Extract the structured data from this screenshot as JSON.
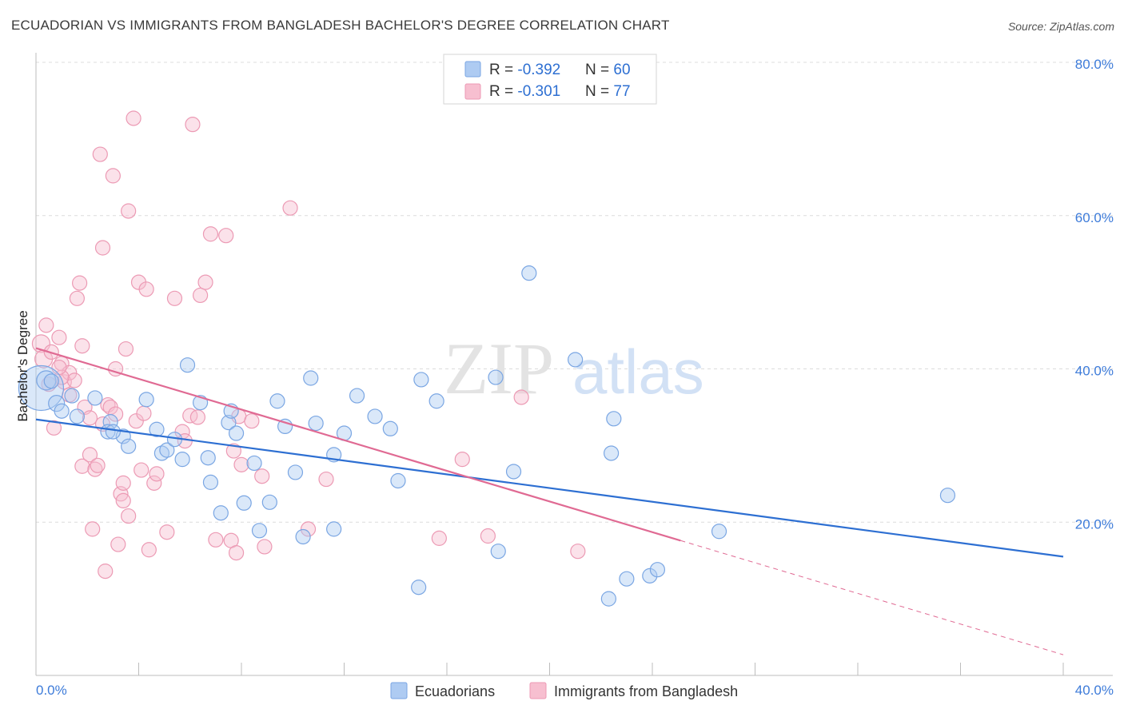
{
  "title": "ECUADORIAN VS IMMIGRANTS FROM BANGLADESH BACHELOR'S DEGREE CORRELATION CHART",
  "source": "Source: ZipAtlas.com",
  "watermark": {
    "zip": "ZIP",
    "atlas": "atlas"
  },
  "colors": {
    "blue_fill": "#aecbf2",
    "blue_stroke": "#7aa6e3",
    "blue_line": "#2d6fd2",
    "pink_fill": "#f7bfd0",
    "pink_stroke": "#ec9ab4",
    "pink_line": "#e06a93",
    "tick_text": "#3d7bd9",
    "grid": "#dcdcdc"
  },
  "legend": {
    "rows": [
      {
        "r_label": "R = ",
        "r_value": "-0.392",
        "n_label": "N = ",
        "n_value": "60",
        "series": "blue"
      },
      {
        "r_label": "R = ",
        "r_value": "-0.301",
        "n_label": "N = ",
        "n_value": "77",
        "series": "pink"
      }
    ]
  },
  "bottom_legend": [
    {
      "label": "Ecuadorians",
      "series": "blue"
    },
    {
      "label": "Immigrants from Bangladesh",
      "series": "pink"
    }
  ],
  "chart_data": {
    "type": "scatter",
    "title": "ECUADORIAN VS IMMIGRANTS FROM BANGLADESH BACHELOR'S DEGREE CORRELATION CHART",
    "xlabel": "",
    "ylabel": "Bachelor's Degree",
    "xlim": [
      0,
      40
    ],
    "ylim": [
      0,
      80
    ],
    "x_tick_labels": [
      {
        "value": 0,
        "label": "0.0%"
      },
      {
        "value": 40,
        "label": "40.0%"
      }
    ],
    "y_tick_labels": [
      {
        "value": 20,
        "label": "20.0%"
      },
      {
        "value": 40,
        "label": "40.0%"
      },
      {
        "value": 60,
        "label": "60.0%"
      },
      {
        "value": 80,
        "label": "80.0%"
      }
    ],
    "x_minor_ticks": [
      4,
      8,
      12,
      16,
      20,
      24,
      28,
      32,
      36,
      40
    ],
    "series": [
      {
        "name": "Ecuadorians",
        "color": "blue",
        "r": -0.392,
        "n": 60,
        "trend": {
          "x0": 0,
          "y0": 33.4,
          "x1": 40,
          "y1": 15.5,
          "dashed_from": null
        },
        "points": [
          [
            0.2,
            37.5,
            28
          ],
          [
            0.4,
            38.5,
            12
          ],
          [
            0.8,
            35.5,
            10
          ],
          [
            1.0,
            34.5,
            9
          ],
          [
            1.6,
            33.8,
            9
          ],
          [
            1.4,
            36.5,
            9
          ],
          [
            2.3,
            36.2,
            9
          ],
          [
            2.9,
            33.1,
            9
          ],
          [
            2.8,
            31.8,
            9
          ],
          [
            3.4,
            31.2,
            9
          ],
          [
            3.6,
            29.9,
            9
          ],
          [
            4.3,
            36.0,
            9
          ],
          [
            4.7,
            32.1,
            9
          ],
          [
            4.9,
            29.0,
            9
          ],
          [
            5.1,
            29.4,
            9
          ],
          [
            5.4,
            30.8,
            9
          ],
          [
            5.7,
            28.2,
            9
          ],
          [
            5.9,
            40.5,
            9
          ],
          [
            6.4,
            35.6,
            9
          ],
          [
            6.7,
            28.4,
            9
          ],
          [
            6.8,
            25.2,
            9
          ],
          [
            7.2,
            21.2,
            9
          ],
          [
            7.5,
            33.0,
            9
          ],
          [
            7.8,
            31.6,
            9
          ],
          [
            7.6,
            34.5,
            9
          ],
          [
            8.1,
            22.5,
            9
          ],
          [
            8.5,
            27.7,
            9
          ],
          [
            8.7,
            18.9,
            9
          ],
          [
            9.1,
            22.6,
            9
          ],
          [
            9.4,
            35.8,
            9
          ],
          [
            9.7,
            32.5,
            9
          ],
          [
            10.1,
            26.5,
            9
          ],
          [
            10.4,
            18.1,
            9
          ],
          [
            10.9,
            32.9,
            9
          ],
          [
            10.7,
            38.8,
            9
          ],
          [
            11.6,
            28.8,
            9
          ],
          [
            11.6,
            19.1,
            9
          ],
          [
            12.0,
            31.6,
            9
          ],
          [
            12.5,
            36.5,
            9
          ],
          [
            13.2,
            33.8,
            9
          ],
          [
            13.8,
            32.2,
            9
          ],
          [
            14.1,
            25.4,
            9
          ],
          [
            14.9,
            11.5,
            9
          ],
          [
            15.0,
            38.6,
            9
          ],
          [
            15.6,
            35.8,
            9
          ],
          [
            17.9,
            38.9,
            9
          ],
          [
            18.0,
            16.2,
            9
          ],
          [
            18.6,
            26.6,
            9
          ],
          [
            19.2,
            52.5,
            9
          ],
          [
            21.0,
            41.2,
            9
          ],
          [
            22.5,
            33.5,
            9
          ],
          [
            22.4,
            29.0,
            9
          ],
          [
            22.3,
            10.0,
            9
          ],
          [
            23.0,
            12.6,
            9
          ],
          [
            23.9,
            13.0,
            9
          ],
          [
            24.2,
            13.8,
            9
          ],
          [
            26.6,
            18.8,
            9
          ],
          [
            35.5,
            23.5,
            9
          ],
          [
            0.6,
            38.4,
            9
          ],
          [
            3.0,
            31.8,
            9
          ]
        ]
      },
      {
        "name": "Immigrants from Bangladesh",
        "color": "pink",
        "r": -0.301,
        "n": 77,
        "trend": {
          "x0": 0,
          "y0": 42.7,
          "x1": 40,
          "y1": 2.7,
          "dashed_from": 25.1
        },
        "points": [
          [
            0.2,
            43.3,
            11
          ],
          [
            0.3,
            41.3,
            11
          ],
          [
            0.4,
            45.7,
            9
          ],
          [
            0.5,
            38.0,
            9
          ],
          [
            0.6,
            42.2,
            9
          ],
          [
            0.7,
            32.3,
            9
          ],
          [
            0.9,
            44.1,
            9
          ],
          [
            1.0,
            40.7,
            9
          ],
          [
            1.1,
            38.3,
            9
          ],
          [
            1.3,
            39.5,
            9
          ],
          [
            1.3,
            36.6,
            9
          ],
          [
            1.5,
            38.5,
            9
          ],
          [
            1.6,
            49.2,
            9
          ],
          [
            1.7,
            51.2,
            9
          ],
          [
            1.8,
            43.0,
            9
          ],
          [
            1.8,
            27.3,
            9
          ],
          [
            1.9,
            35.0,
            9
          ],
          [
            2.1,
            28.8,
            9
          ],
          [
            2.1,
            33.6,
            9
          ],
          [
            2.2,
            19.1,
            9
          ],
          [
            2.3,
            26.9,
            9
          ],
          [
            2.4,
            27.4,
            9
          ],
          [
            2.5,
            68.0,
            9
          ],
          [
            2.6,
            32.8,
            9
          ],
          [
            2.6,
            55.8,
            9
          ],
          [
            2.7,
            13.6,
            9
          ],
          [
            2.8,
            35.3,
            9
          ],
          [
            2.9,
            35.0,
            9
          ],
          [
            3.0,
            65.2,
            9
          ],
          [
            3.1,
            40.0,
            9
          ],
          [
            3.1,
            34.1,
            9
          ],
          [
            3.2,
            17.1,
            9
          ],
          [
            3.3,
            23.7,
            9
          ],
          [
            3.4,
            25.1,
            9
          ],
          [
            3.4,
            22.8,
            9
          ],
          [
            3.5,
            42.6,
            9
          ],
          [
            3.6,
            60.6,
            9
          ],
          [
            3.6,
            20.8,
            9
          ],
          [
            3.8,
            72.7,
            9
          ],
          [
            3.9,
            33.2,
            9
          ],
          [
            4.0,
            51.3,
            9
          ],
          [
            4.1,
            26.8,
            9
          ],
          [
            4.2,
            34.2,
            9
          ],
          [
            4.3,
            50.4,
            9
          ],
          [
            4.4,
            16.4,
            9
          ],
          [
            4.6,
            25.1,
            9
          ],
          [
            4.7,
            26.3,
            9
          ],
          [
            5.1,
            18.7,
            9
          ],
          [
            5.4,
            49.2,
            9
          ],
          [
            5.7,
            31.8,
            9
          ],
          [
            5.8,
            30.6,
            9
          ],
          [
            6.0,
            33.9,
            9
          ],
          [
            6.1,
            71.9,
            9
          ],
          [
            6.3,
            33.7,
            9
          ],
          [
            6.4,
            49.6,
            9
          ],
          [
            6.6,
            51.3,
            9
          ],
          [
            6.8,
            57.6,
            9
          ],
          [
            7.0,
            17.7,
            9
          ],
          [
            7.4,
            57.4,
            9
          ],
          [
            7.6,
            17.6,
            9
          ],
          [
            7.7,
            29.3,
            9
          ],
          [
            7.8,
            16.0,
            9
          ],
          [
            7.9,
            33.8,
            9
          ],
          [
            8.0,
            27.5,
            9
          ],
          [
            8.4,
            33.2,
            9
          ],
          [
            8.8,
            26.0,
            9
          ],
          [
            8.9,
            16.8,
            9
          ],
          [
            9.9,
            61.0,
            9
          ],
          [
            10.6,
            19.1,
            9
          ],
          [
            11.3,
            25.6,
            9
          ],
          [
            15.7,
            17.9,
            9
          ],
          [
            16.6,
            28.2,
            9
          ],
          [
            17.6,
            18.2,
            9
          ],
          [
            18.9,
            36.3,
            9
          ],
          [
            21.1,
            16.2,
            9
          ],
          [
            1.0,
            38.9,
            9
          ],
          [
            0.9,
            40.2,
            9
          ]
        ]
      }
    ]
  }
}
